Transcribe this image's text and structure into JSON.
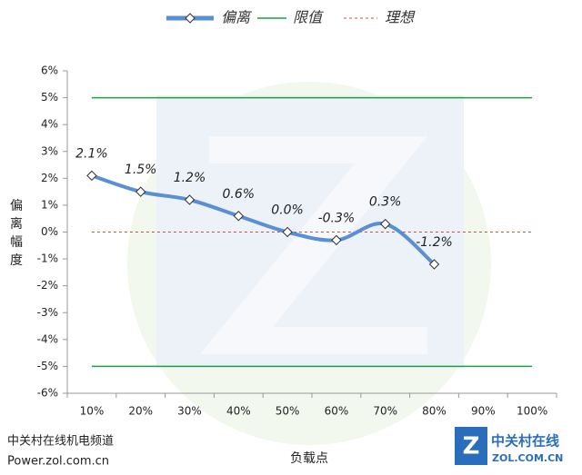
{
  "chart_data": {
    "type": "line",
    "categories": [
      "10%",
      "20%",
      "30%",
      "40%",
      "50%",
      "60%",
      "70%",
      "80%",
      "90%",
      "100%"
    ],
    "series": [
      {
        "name": "偏离",
        "color": "#5b8fd3",
        "values": [
          2.1,
          1.5,
          1.2,
          0.6,
          0.0,
          -0.3,
          0.3,
          -1.2,
          null,
          null
        ],
        "value_labels": [
          "2.1%",
          "1.5%",
          "1.2%",
          "0.6%",
          "0.0%",
          "-0.3%",
          "0.3%",
          "-1.2%",
          null,
          null
        ]
      }
    ],
    "limit_lines": {
      "name": "限值",
      "color": "#1f9e45",
      "values": [
        5,
        -5
      ]
    },
    "ideal_line": {
      "name": "理想",
      "color": "#c0504d",
      "value": 0
    },
    "ylim": [
      -6,
      6
    ],
    "yticks": [
      {
        "value": -6,
        "label": "-6%"
      },
      {
        "value": -5,
        "label": "-5%"
      },
      {
        "value": -4,
        "label": "-4%"
      },
      {
        "value": -3,
        "label": "-3%"
      },
      {
        "value": -2,
        "label": "-2%"
      },
      {
        "value": -1,
        "label": "-1%"
      },
      {
        "value": 0,
        "label": "0%"
      },
      {
        "value": 1,
        "label": "1%"
      },
      {
        "value": 2,
        "label": "2%"
      },
      {
        "value": 3,
        "label": "3%"
      },
      {
        "value": 4,
        "label": "4%"
      },
      {
        "value": 5,
        "label": "5%"
      },
      {
        "value": 6,
        "label": "6%"
      }
    ],
    "y_label": "偏离幅度",
    "x_label": "负载点",
    "source": [
      "中关村在线机电频道",
      "Power.zol.com.cn"
    ],
    "logo": [
      "中关村在线",
      "ZOL.COM.CN"
    ],
    "grid": false,
    "legend": "top"
  }
}
